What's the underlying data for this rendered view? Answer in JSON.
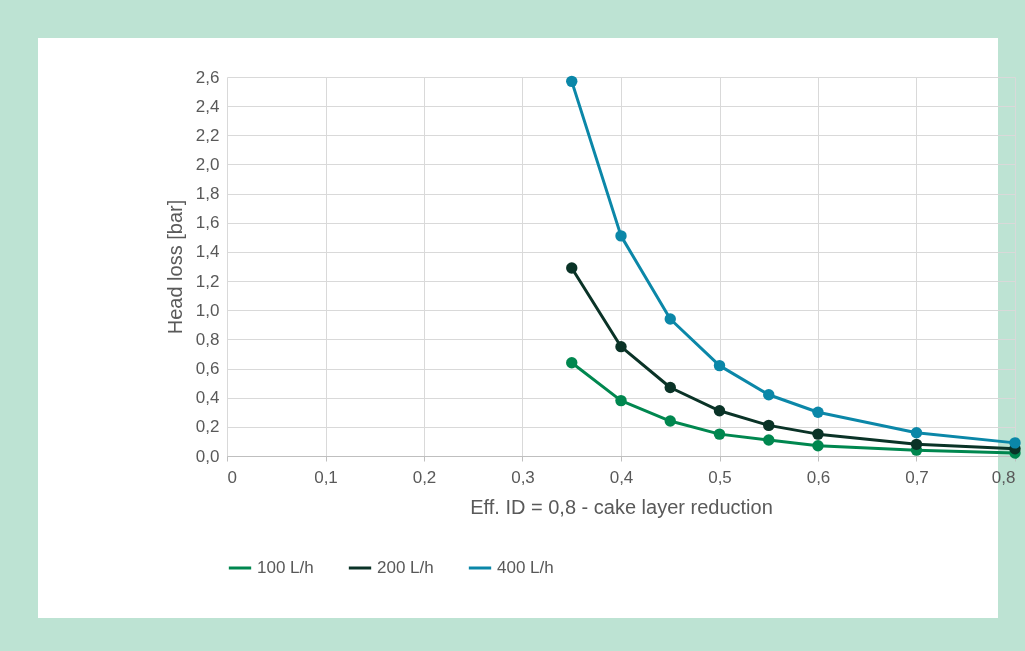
{
  "chart_data": {
    "type": "line",
    "xlabel": "Eff. ID = 0,8 - cake layer reduction",
    "ylabel": "Head loss [bar]",
    "x": [
      0.35,
      0.4,
      0.45,
      0.5,
      0.55,
      0.6,
      0.7,
      0.8
    ],
    "series": [
      {
        "name": "100 L/h",
        "color": "#00874f",
        "values": [
          0.64,
          0.38,
          0.24,
          0.15,
          0.11,
          0.07,
          0.04,
          0.02
        ]
      },
      {
        "name": "200 L/h",
        "color": "#0a3327",
        "values": [
          1.29,
          0.75,
          0.47,
          0.31,
          0.21,
          0.15,
          0.08,
          0.05
        ]
      },
      {
        "name": "400 L/h",
        "color": "#0b87a8",
        "values": [
          2.57,
          1.51,
          0.94,
          0.62,
          0.42,
          0.3,
          0.16,
          0.09
        ]
      }
    ],
    "xlim": [
      0,
      0.8
    ],
    "xticks": [
      0,
      {
        "value": 0.1,
        "label": "0,1"
      },
      {
        "value": 0.2,
        "label": "0,2"
      },
      {
        "value": 0.3,
        "label": "0,3"
      },
      {
        "value": 0.4,
        "label": "0,4"
      },
      {
        "value": 0.5,
        "label": "0,5"
      },
      {
        "value": 0.6,
        "label": "0,6"
      },
      {
        "value": 0.7,
        "label": "0,7"
      },
      {
        "value": 0.8,
        "label": "0,8"
      }
    ],
    "ylim": [
      0,
      2.6
    ],
    "yticks": [
      {
        "value": 0,
        "label": "0,0"
      },
      {
        "value": 0.2,
        "label": "0,2"
      },
      {
        "value": 0.4,
        "label": "0,4"
      },
      {
        "value": 0.6,
        "label": "0,6"
      },
      {
        "value": 0.8,
        "label": "0,8"
      },
      {
        "value": 1,
        "label": "1,0"
      },
      {
        "value": 1.2,
        "label": "1,2"
      },
      {
        "value": 1.4,
        "label": "1,4"
      },
      {
        "value": 1.6,
        "label": "1,6"
      },
      {
        "value": 1.8,
        "label": "1,8"
      },
      {
        "value": 2,
        "label": "2,0"
      },
      {
        "value": 2.2,
        "label": "2,2"
      },
      {
        "value": 2.4,
        "label": "2,4"
      },
      {
        "value": 2.6,
        "label": "2,6"
      }
    ],
    "grid": true,
    "legend": "bottom",
    "marker": "circle",
    "line_style": "solid"
  }
}
